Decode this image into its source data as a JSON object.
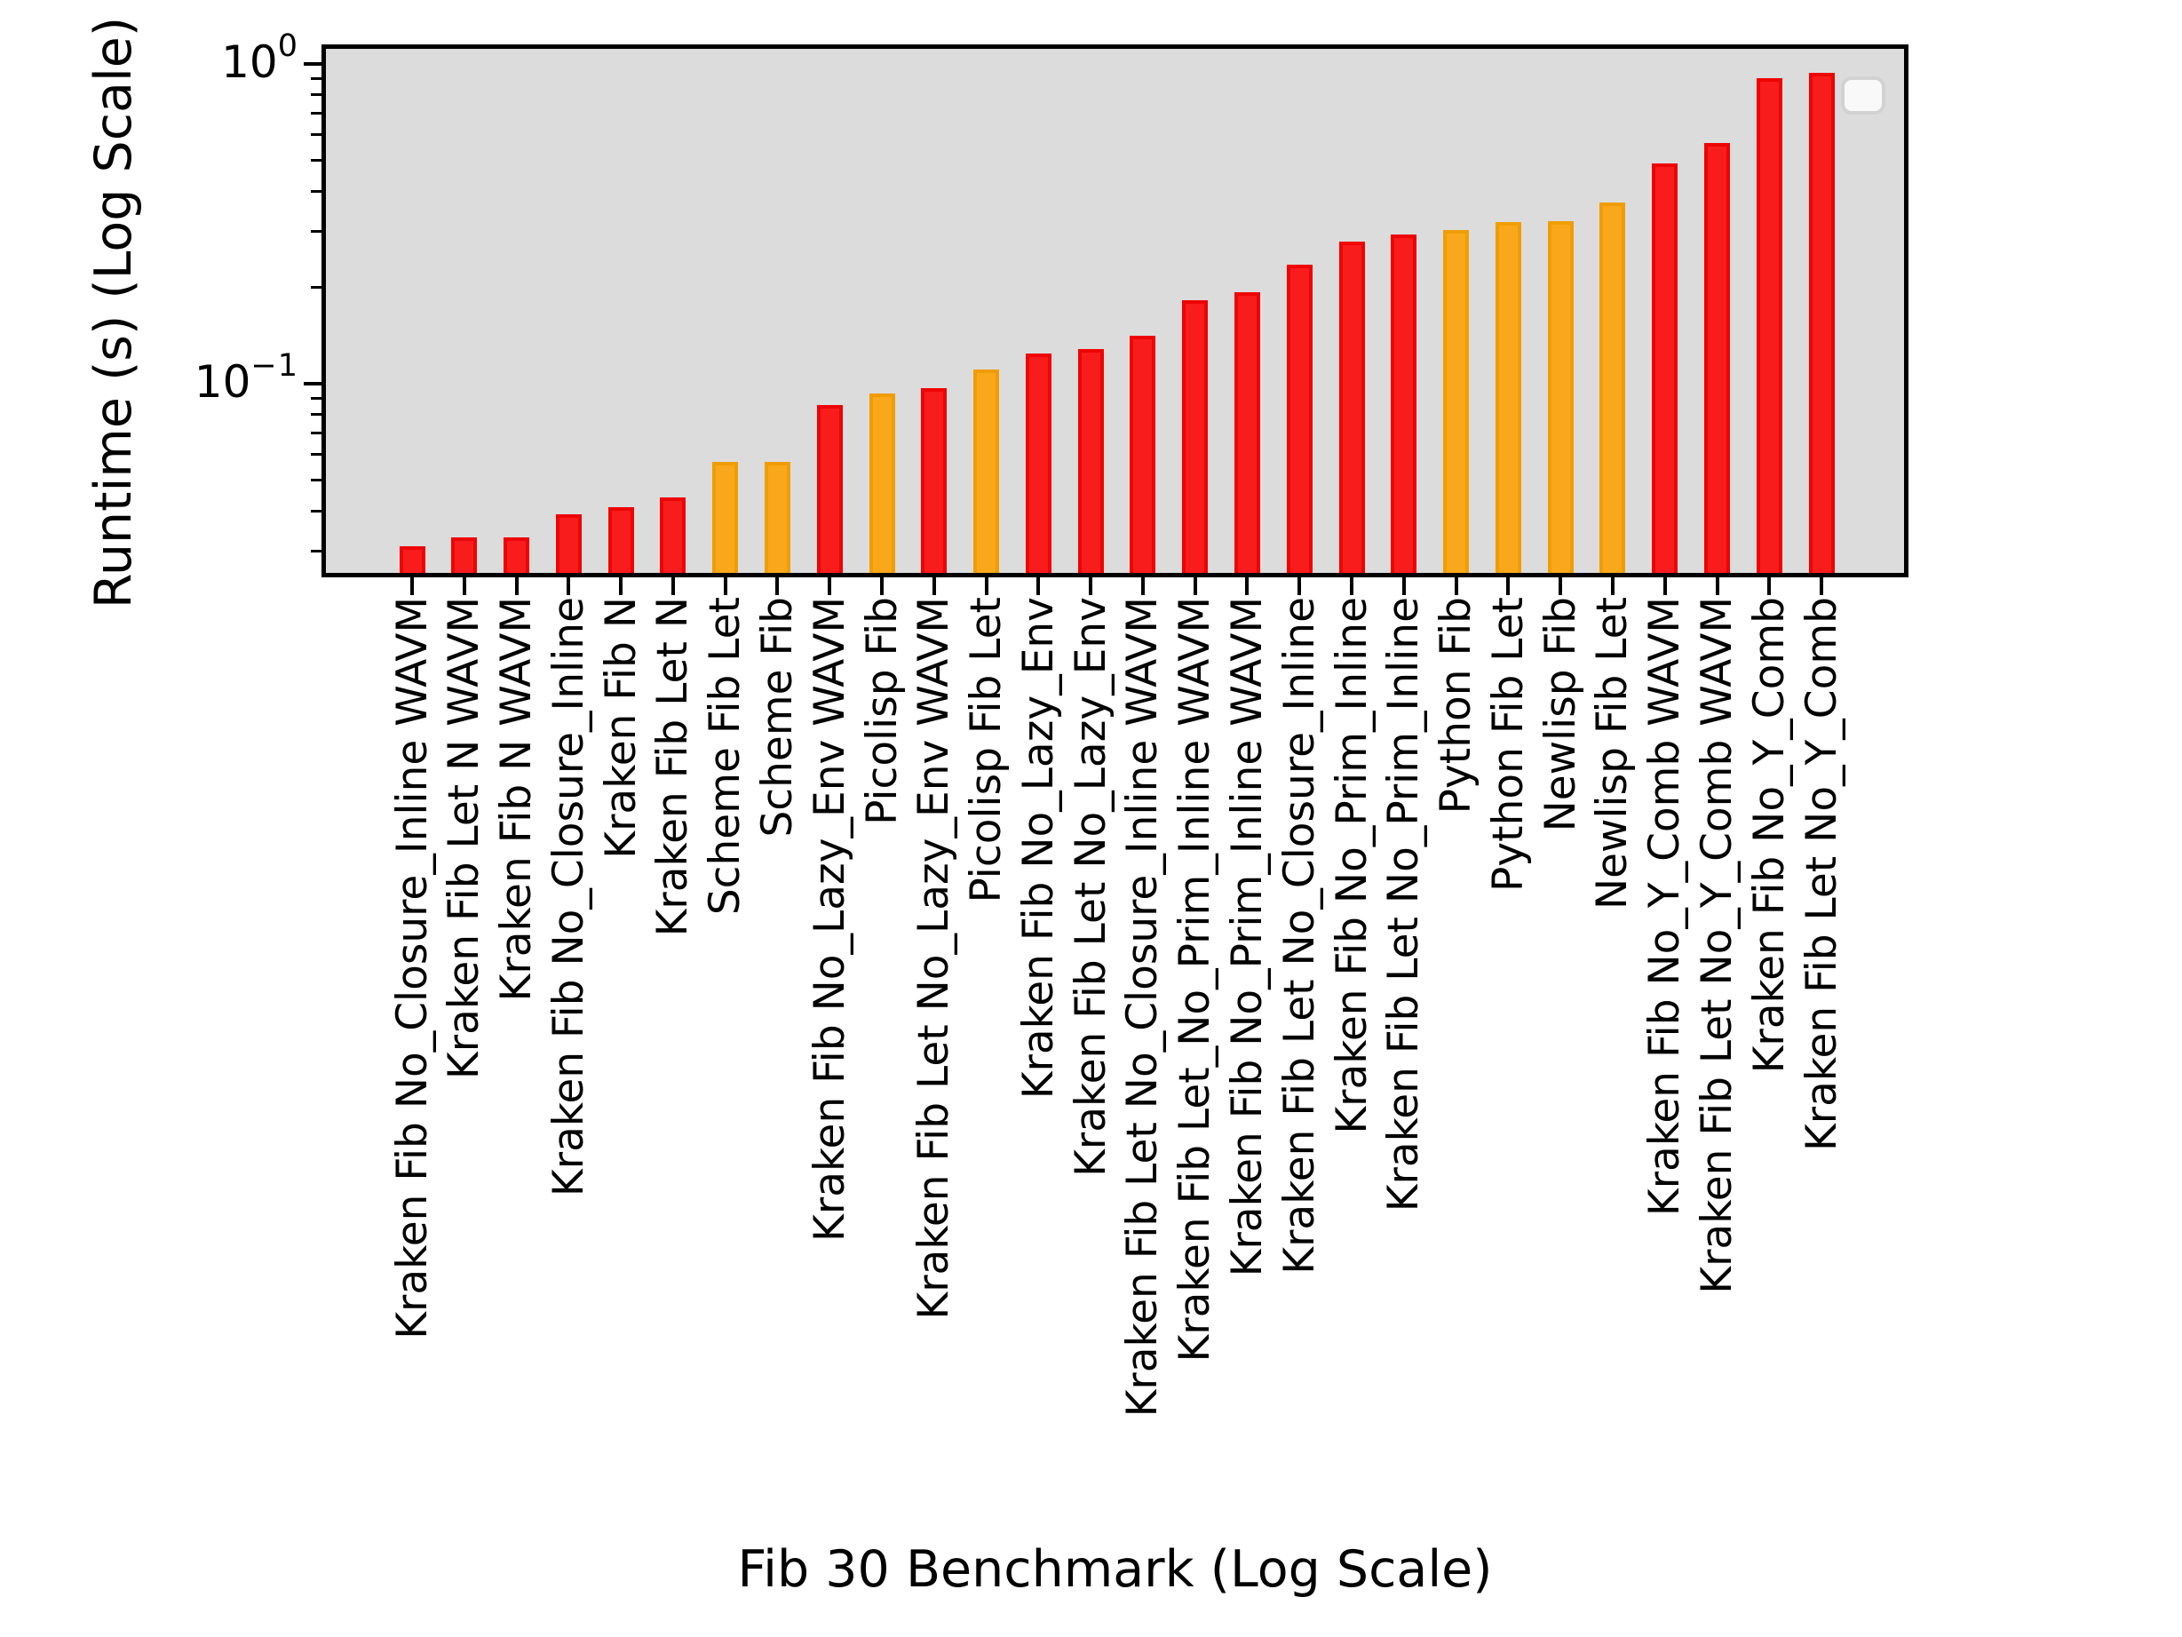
{
  "chart_data": {
    "type": "bar",
    "title": "",
    "xlabel": "Fib 30 Benchmark (Log Scale)",
    "ylabel": "Runtime (s) (Log Scale)",
    "yscale": "log",
    "ylim": [
      0.0256,
      1.115
    ],
    "grid": false,
    "plot_background": "#dcdcdc",
    "legend": {
      "visible": true,
      "position": "upper right",
      "entries": []
    },
    "y_ticks": [
      {
        "value": 1,
        "base": "10",
        "exp": "0"
      },
      {
        "value": 0.1,
        "base": "10",
        "exp": "−1"
      }
    ],
    "group_colors": {
      "red": {
        "fill": "#f91c1c",
        "edge": "#ee0404"
      },
      "orange": {
        "fill": "#faa81b",
        "edge": "#f09d05"
      }
    },
    "categories": [
      "Kraken Fib No_Closure_Inline WAVM",
      "Kraken Fib Let N WAVM",
      "Kraken Fib N WAVM",
      "Kraken Fib No_Closure_Inline",
      "Kraken Fib N",
      "Kraken Fib Let N",
      "Scheme Fib Let",
      "Scheme Fib",
      "Kraken Fib No_Lazy_Env WAVM",
      "Picolisp Fib",
      "Kraken Fib Let No_Lazy_Env WAVM",
      "Picolisp Fib Let",
      "Kraken Fib No_Lazy_Env",
      "Kraken Fib Let No_Lazy_Env",
      "Kraken Fib Let No_Closure_Inline WAVM",
      "Kraken Fib Let_No_Prim_Inline WAVM",
      "Kraken Fib No_Prim_Inline WAVM",
      "Kraken Fib Let No_Closure_Inline",
      "Kraken Fib No_Prim_Inline",
      "Kraken Fib Let No_Prim_Inline",
      "Python Fib",
      "Python Fib Let",
      "Newlisp Fib",
      "Newlisp Fib Let",
      "Kraken Fib No_Y_Comb WAVM",
      "Kraken Fib Let No_Y_Comb WAVM",
      "Kraken Fib No_Y_Comb",
      "Kraken Fib Let No_Y_Comb"
    ],
    "values": [
      0.031,
      0.033,
      0.033,
      0.039,
      0.041,
      0.044,
      0.057,
      0.057,
      0.086,
      0.093,
      0.097,
      0.111,
      0.124,
      0.128,
      0.141,
      0.182,
      0.193,
      0.236,
      0.278,
      0.293,
      0.302,
      0.32,
      0.322,
      0.369,
      0.489,
      0.566,
      0.903,
      0.938
    ],
    "bar_groups": [
      "red",
      "red",
      "red",
      "red",
      "red",
      "red",
      "orange",
      "orange",
      "red",
      "orange",
      "red",
      "orange",
      "red",
      "red",
      "red",
      "red",
      "red",
      "red",
      "red",
      "red",
      "orange",
      "orange",
      "orange",
      "orange",
      "red",
      "red",
      "red",
      "red"
    ]
  }
}
